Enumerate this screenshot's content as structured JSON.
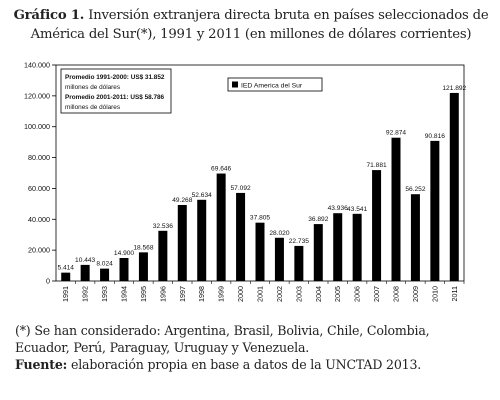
{
  "title": {
    "label": "Gráfico 1.",
    "text": "Inversión extranjera directa bruta en países seleccionados de América del Sur(*), 1991 y 2011 (en millones de dólares corrientes)"
  },
  "chart_data": {
    "type": "bar",
    "categories": [
      "1991",
      "1992",
      "1993",
      "1994",
      "1995",
      "1996",
      "1997",
      "1998",
      "1999",
      "2000",
      "2001",
      "2002",
      "2003",
      "2004",
      "2005",
      "2006",
      "2007",
      "2008",
      "2009",
      "2010",
      "2011"
    ],
    "series": [
      {
        "name": "IED America del Sur",
        "values": [
          5414,
          10443,
          8024,
          14900,
          18568,
          32536,
          49268,
          52634,
          69646,
          57092,
          37805,
          28020,
          22735,
          36892,
          43936,
          43541,
          71881,
          92874,
          56252,
          90816,
          121892
        ],
        "labels": [
          "5.414",
          "10.443",
          "8.024",
          "14.900",
          "18.568",
          "32.536",
          "49.268",
          "52.634",
          "69.646",
          "57.092",
          "37.805",
          "28.020",
          "22.735",
          "36.892",
          "43.936",
          "43.541",
          "71.881",
          "92.874",
          "56.252",
          "90.816",
          "121.892"
        ]
      }
    ],
    "ylim": [
      0,
      140000
    ],
    "yticks": [
      0,
      20000,
      40000,
      60000,
      80000,
      100000,
      120000,
      140000
    ],
    "ytick_labels": [
      "0",
      "20.000",
      "40.000",
      "60.000",
      "80.000",
      "100.000",
      "120.000",
      "140.000"
    ],
    "legend": {
      "position": "top-right",
      "label": "IED America del Sur"
    },
    "annotation": [
      "Promedio 1991-2000: US$ 31.852",
      "millones de dólares",
      "Promedio 2001-2011: US$ 58.786",
      "millones de dólares"
    ],
    "bar_color": "#000000"
  },
  "note": "(*) Se han considerado: Argentina, Brasil, Bolivia, Chile, Colombia, Ecuador, Perú, Paraguay, Uruguay y Venezuela.",
  "source": {
    "label": "Fuente:",
    "text": "elaboración propia en base a datos de la UNCTAD 2013."
  }
}
